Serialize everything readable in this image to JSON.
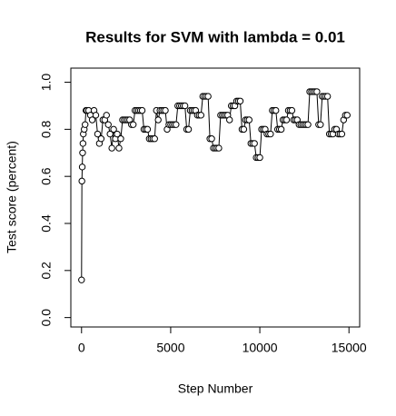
{
  "chart_data": {
    "type": "line",
    "title": "Results for SVM with lambda = 0.01",
    "xlabel": "Step Number",
    "ylabel": "Test score (percent)",
    "x": [
      0,
      20,
      40,
      60,
      80,
      100,
      150,
      200,
      250,
      300,
      400,
      500,
      600,
      700,
      800,
      900,
      1000,
      1100,
      1200,
      1300,
      1400,
      1500,
      1600,
      1700,
      1800,
      1900,
      2000,
      2100,
      2200,
      2300,
      2400,
      2500,
      2600,
      2700,
      2800,
      2900,
      3000,
      3100,
      3200,
      3300,
      3400,
      3500,
      3600,
      3700,
      3800,
      3900,
      4000,
      4100,
      4200,
      4300,
      4400,
      4500,
      4600,
      4700,
      4800,
      4900,
      5000,
      5100,
      5200,
      5300,
      5400,
      5500,
      5600,
      5700,
      5800,
      5900,
      6000,
      6100,
      6200,
      6300,
      6400,
      6500,
      6600,
      6700,
      6800,
      6900,
      7000,
      7100,
      7200,
      7300,
      7400,
      7500,
      7600,
      7700,
      7800,
      7900,
      8000,
      8100,
      8200,
      8300,
      8400,
      8500,
      8600,
      8700,
      8800,
      8900,
      9000,
      9100,
      9200,
      9300,
      9400,
      9500,
      9600,
      9700,
      9800,
      9900,
      10000,
      10100,
      10200,
      10300,
      10400,
      10500,
      10600,
      10700,
      10800,
      10900,
      11000,
      11100,
      11200,
      11300,
      11400,
      11500,
      11600,
      11700,
      11800,
      11900,
      12000,
      12100,
      12200,
      12300,
      12400,
      12500,
      12600,
      12700,
      12800,
      12900,
      13000,
      13100,
      13200,
      13300,
      13400,
      13500,
      13600,
      13700,
      13800,
      13900,
      14000,
      14100,
      14200,
      14300,
      14400,
      14500,
      14600,
      14700,
      14800,
      14900
    ],
    "series": [
      {
        "color": "#000000",
        "values": [
          0.16,
          0.58,
          0.64,
          0.7,
          0.74,
          0.78,
          0.8,
          0.82,
          0.88,
          0.88,
          0.88,
          0.86,
          0.84,
          0.88,
          0.86,
          0.78,
          0.74,
          0.76,
          0.84,
          0.84,
          0.86,
          0.82,
          0.78,
          0.72,
          0.8,
          0.76,
          0.78,
          0.72,
          0.76,
          0.84,
          0.84,
          0.84,
          0.84,
          0.84,
          0.82,
          0.82,
          0.88,
          0.88,
          0.88,
          0.88,
          0.88,
          0.8,
          0.8,
          0.8,
          0.76,
          0.76,
          0.76,
          0.76,
          0.88,
          0.84,
          0.88,
          0.88,
          0.88,
          0.88,
          0.8,
          0.82,
          0.82,
          0.82,
          0.82,
          0.82,
          0.9,
          0.9,
          0.9,
          0.9,
          0.9,
          0.8,
          0.8,
          0.88,
          0.88,
          0.88,
          0.88,
          0.86,
          0.86,
          0.86,
          0.94,
          0.94,
          0.94,
          0.94,
          0.76,
          0.76,
          0.72,
          0.72,
          0.72,
          0.72,
          0.86,
          0.86,
          0.86,
          0.86,
          0.86,
          0.84,
          0.9,
          0.9,
          0.9,
          0.92,
          0.92,
          0.92,
          0.8,
          0.8,
          0.84,
          0.84,
          0.84,
          0.74,
          0.74,
          0.74,
          0.68,
          0.68,
          0.68,
          0.8,
          0.8,
          0.8,
          0.78,
          0.78,
          0.78,
          0.88,
          0.88,
          0.88,
          0.8,
          0.8,
          0.8,
          0.84,
          0.84,
          0.84,
          0.88,
          0.88,
          0.88,
          0.84,
          0.84,
          0.84,
          0.82,
          0.82,
          0.82,
          0.82,
          0.82,
          0.82,
          0.96,
          0.96,
          0.96,
          0.96,
          0.96,
          0.82,
          0.82,
          0.94,
          0.94,
          0.94,
          0.94,
          0.78,
          0.78,
          0.78,
          0.8,
          0.8,
          0.78,
          0.78,
          0.78,
          0.84,
          0.86,
          0.86
        ]
      }
    ],
    "xlim": [
      -600,
      15600
    ],
    "ylim": [
      -0.04,
      1.06
    ],
    "xticks": [
      0,
      5000,
      10000,
      15000
    ],
    "yticks": [
      {
        "value": 0,
        "label": "0.0"
      },
      0.2,
      0.4,
      0.6,
      0.8,
      {
        "value": 1,
        "label": "1.0"
      }
    ]
  }
}
